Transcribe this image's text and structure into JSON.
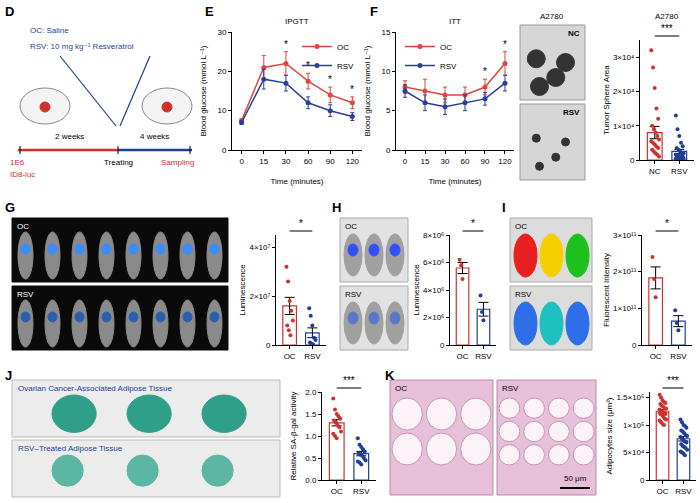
{
  "schematic": {
    "panel": "D",
    "treatments": [
      "OC: Saline",
      "RSV: 10 mg kg⁻¹ Resveratrol"
    ],
    "cells": "1E6",
    "cell_line": "ID8-luc",
    "timeline": [
      "2 weeks",
      "Treating",
      "4 weeks",
      "Sampling"
    ]
  },
  "photos": [
    {
      "title": "A2780",
      "labels": [
        "NC",
        "RSV"
      ]
    },
    {
      "labels": [
        "OC",
        "RSV"
      ]
    },
    {
      "labels": [
        "OC",
        "RSV"
      ]
    },
    {
      "labels": [
        "OC",
        "RSV"
      ]
    },
    {
      "labels": [
        "Ovarian Cancer-Associated Adipose Tissue",
        "RSV–Treated Adipose Tissue"
      ]
    },
    {
      "labels": [
        "OC",
        "RSV"
      ],
      "scale_bar": "50 μm"
    }
  ],
  "chart_data": [
    {
      "type": "line",
      "panel": "E",
      "title": "IPGTT",
      "x_label": "Time (minutes)",
      "y_label": "Blood glucose (mmol L⁻¹)",
      "categories": [
        "0",
        "15",
        "30",
        "60",
        "90",
        "120"
      ],
      "series": [
        {
          "name": "OC",
          "color": "#e0443c",
          "marker": "circle",
          "line_style": "solid",
          "values": [
            7.5,
            21,
            22,
            17.5,
            14,
            12
          ],
          "errors": [
            0.5,
            3,
            3,
            2,
            2,
            1.5
          ]
        },
        {
          "name": "RSV",
          "color": "#2b3f9a",
          "marker": "circle",
          "line_style": "solid",
          "values": [
            7,
            18,
            17,
            12,
            10,
            8.5
          ],
          "errors": [
            0.5,
            2.5,
            2,
            1.5,
            1.5,
            1
          ]
        }
      ],
      "ylim": [
        0,
        30
      ],
      "yticks": [
        0,
        10,
        20,
        30
      ],
      "grid": false,
      "legend": "top right",
      "annotations": [
        {
          "x": "30",
          "text": "*"
        },
        {
          "x": "60",
          "text": "*"
        },
        {
          "x": "90",
          "text": "*"
        },
        {
          "x": "120",
          "text": "*"
        }
      ]
    },
    {
      "type": "line",
      "panel": "F",
      "title": "ITT",
      "x_label": "Time (minutes)",
      "y_label": "Blood glucose (mmol L⁻¹)",
      "categories": [
        "0",
        "15",
        "30",
        "60",
        "90",
        "120"
      ],
      "series": [
        {
          "name": "OC",
          "color": "#e0443c",
          "marker": "circle",
          "line_style": "solid",
          "values": [
            8,
            7.5,
            7,
            7,
            8,
            11
          ],
          "errors": [
            0.8,
            1.5,
            1,
            1,
            1,
            1.5
          ]
        },
        {
          "name": "RSV",
          "color": "#2b3f9a",
          "marker": "circle",
          "line_style": "solid",
          "values": [
            7.5,
            6,
            5.5,
            6,
            6.5,
            8.5
          ],
          "errors": [
            0.8,
            1,
            1,
            1,
            0.8,
            1
          ]
        }
      ],
      "ylim": [
        0,
        15
      ],
      "yticks": [
        0,
        5,
        10,
        15
      ],
      "grid": false,
      "legend": "top left",
      "annotations": [
        {
          "x": "90",
          "text": "*"
        },
        {
          "x": "120",
          "text": "*"
        }
      ]
    },
    {
      "type": "bar",
      "title": "A2780",
      "y_label": "Tumor Sphere Area",
      "categories": [
        "NC",
        "RSV"
      ],
      "values": [
        8000,
        2500
      ],
      "errors": [
        1800,
        600
      ],
      "points": [
        [
          32000,
          27000,
          21000,
          15000,
          12000,
          10000,
          9000,
          8000,
          7000,
          6000,
          5500,
          5000,
          4500,
          4000,
          3500,
          3000,
          2500,
          2000,
          1500,
          1000
        ],
        [
          13000,
          9000,
          7000,
          5000,
          4000,
          3500,
          3000,
          2500,
          2000,
          2000,
          1500,
          1500,
          1200,
          1000,
          1000,
          800,
          800,
          600,
          500,
          500,
          400,
          300,
          300,
          200,
          200,
          100,
          100,
          100
        ]
      ],
      "colors": [
        "#d0312d",
        "#1f3f99"
      ],
      "marker": "circle",
      "ylim": [
        0,
        35000
      ],
      "yticks": [
        0,
        {
          "value": 10000,
          "label": "1×10⁴"
        },
        {
          "value": 20000,
          "label": "2×10⁴"
        },
        {
          "value": 30000,
          "label": "3×10⁴"
        }
      ],
      "grid": false,
      "annotations": [
        {
          "text": "***"
        }
      ]
    },
    {
      "type": "bar",
      "panel": "G",
      "y_label": "Luminescence",
      "categories": [
        "OC",
        "RSV"
      ],
      "values": [
        16000000,
        5000000
      ],
      "errors": [
        3500000,
        2000000
      ],
      "points": [
        [
          32000000,
          26000000,
          18000000,
          14000000,
          10000000,
          8000000,
          6000000,
          4000000
        ],
        [
          15000000,
          12000000,
          8000000,
          3000000,
          2000000,
          1000000,
          500000,
          200000
        ]
      ],
      "colors": [
        "#d0312d",
        "#1f3f99"
      ],
      "marker": "circle",
      "ylim": [
        0,
        45000000
      ],
      "yticks": [
        0,
        {
          "value": 20000000,
          "label": "2×10⁷"
        },
        {
          "value": 40000000,
          "label": "4×10⁷"
        }
      ],
      "grid": false,
      "annotations": [
        {
          "text": "*"
        }
      ]
    },
    {
      "type": "bar",
      "panel": "H",
      "y_label": "Luminescence",
      "categories": [
        "OC",
        "RSV"
      ],
      "values": [
        5600000,
        2600000
      ],
      "errors": [
        400000,
        500000
      ],
      "points": [
        [
          6200000,
          5800000,
          4800000
        ],
        [
          3600000,
          2400000,
          1800000
        ]
      ],
      "colors": [
        "#d0312d",
        "#1f3f99"
      ],
      "marker": "circle",
      "ylim": [
        0,
        8000000
      ],
      "yticks": [
        0,
        {
          "value": 2000000,
          "label": "2×10⁶"
        },
        {
          "value": 4000000,
          "label": "4×10⁶"
        },
        {
          "value": 6000000,
          "label": "6×10⁶"
        },
        {
          "value": 8000000,
          "label": "8×10⁶"
        }
      ],
      "grid": false,
      "annotations": [
        {
          "text": "*"
        }
      ]
    },
    {
      "type": "bar",
      "panel": "I",
      "y_label": "Fluorescent Intensity",
      "categories": [
        "OC",
        "RSV"
      ],
      "values": [
        183000000000,
        65000000000
      ],
      "errors": [
        30000000000,
        15000000000
      ],
      "points": [
        [
          240000000000,
          180000000000,
          130000000000
        ],
        [
          95000000000,
          60000000000,
          40000000000
        ]
      ],
      "colors": [
        "#d0312d",
        "#1f3f99"
      ],
      "marker": "circle",
      "ylim": [
        0,
        300000000000
      ],
      "yticks": [
        0,
        {
          "value": 100000000000,
          "label": "1×10¹¹"
        },
        {
          "value": 200000000000,
          "label": "2×10¹¹"
        },
        {
          "value": 300000000000,
          "label": "3×10¹¹"
        }
      ],
      "grid": false,
      "annotations": [
        {
          "text": "*"
        }
      ]
    },
    {
      "type": "bar",
      "panel": "J",
      "y_label": "Relative SA-β-gal activity",
      "categories": [
        "OC",
        "RSV"
      ],
      "values": [
        1.3,
        0.6
      ],
      "errors": [
        0.07,
        0.05
      ],
      "points": [
        [
          1.85,
          1.6,
          1.5,
          1.45,
          1.4,
          1.35,
          1.3,
          1.25,
          1.2,
          1.1,
          1.05,
          1.0,
          0.95
        ],
        [
          0.95,
          0.8,
          0.75,
          0.7,
          0.65,
          0.6,
          0.58,
          0.55,
          0.5,
          0.45,
          0.42,
          0.4,
          0.35
        ]
      ],
      "colors": [
        "#d0312d",
        "#1f3f99"
      ],
      "marker": "circle",
      "ylim": [
        0,
        2
      ],
      "yticks": [
        {
          "value": 0,
          "label": "0.0"
        },
        0.5,
        {
          "value": 1,
          "label": "1.0"
        },
        1.5,
        {
          "value": 2,
          "label": "2.0"
        }
      ],
      "grid": false,
      "annotations": [
        {
          "text": "***"
        }
      ]
    },
    {
      "type": "bar",
      "panel": "K",
      "y_label": "Adipocytes size (μm²)",
      "categories": [
        "OC",
        "RSV"
      ],
      "values": [
        125000,
        75000
      ],
      "errors": [
        3000,
        4000
      ],
      "points": [
        [
          155000,
          150000,
          145000,
          142000,
          140000,
          138000,
          135000,
          133000,
          130000,
          130000,
          128000,
          125000,
          125000,
          122000,
          120000,
          120000,
          118000,
          115000,
          112000,
          110000,
          108000,
          105000,
          102000,
          100000
        ],
        [
          110000,
          105000,
          100000,
          98000,
          95000,
          90000,
          88000,
          85000,
          82000,
          80000,
          78000,
          75000,
          72000,
          70000,
          68000,
          65000,
          62000,
          60000,
          58000,
          55000,
          52000,
          50000,
          48000,
          45000
        ]
      ],
      "colors": [
        "#d0312d",
        "#1f3f99"
      ],
      "marker": "circle",
      "ylim": [
        0,
        160000
      ],
      "yticks": [
        0,
        {
          "value": 50000,
          "label": "5×10⁴"
        },
        {
          "value": 100000,
          "label": "1×10⁵"
        },
        {
          "value": 150000,
          "label": "1.5×10⁵"
        }
      ],
      "grid": false,
      "annotations": [
        {
          "text": "***"
        }
      ]
    }
  ]
}
